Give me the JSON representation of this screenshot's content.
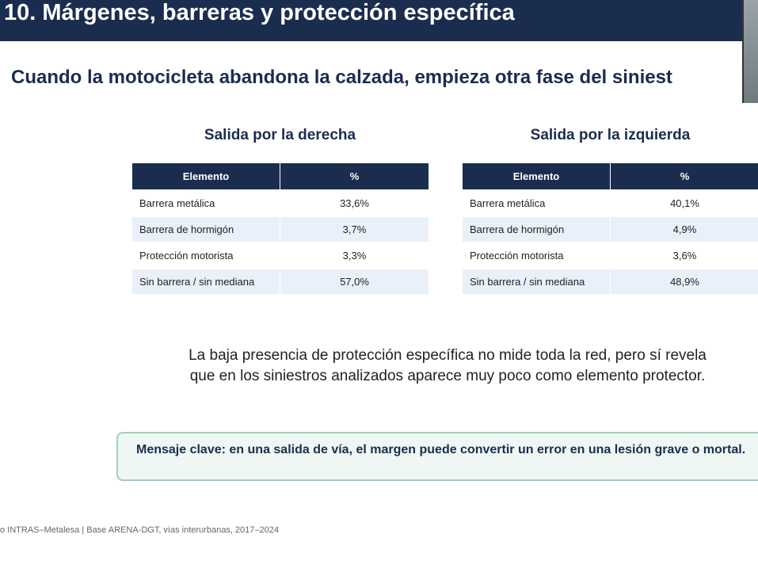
{
  "header": {
    "title": "10. Márgenes, barreras y protección específica"
  },
  "subtitle": "Cuando la motocicleta abandona la calzada, empieza otra fase del siniest",
  "tables": [
    {
      "title": "Salida por la derecha",
      "columns": [
        "Elemento",
        "%"
      ],
      "rows": [
        [
          "Barrera metálica",
          "33,6%"
        ],
        [
          "Barrera de hormigón",
          "3,7%"
        ],
        [
          "Protección motorista",
          "3,3%"
        ],
        [
          "Sin barrera / sin mediana",
          "57,0%"
        ]
      ]
    },
    {
      "title": "Salida por la izquierda",
      "columns": [
        "Elemento",
        "%"
      ],
      "rows": [
        [
          "Barrera metálica",
          "40,1%"
        ],
        [
          "Barrera de hormigón",
          "4,9%"
        ],
        [
          "Protección motorista",
          "3,6%"
        ],
        [
          "Sin barrera / sin mediana",
          "48,9%"
        ]
      ]
    }
  ],
  "note": {
    "lines": [
      "La baja presencia de protección específica no mide toda la red, pero sí revela",
      "que en los siniestros analizados aparece muy poco como elemento protector."
    ]
  },
  "key_message": "Mensaje clave: en una salida de vía, el margen puede convertir un error en una lesión grave o mortal.",
  "footer": "o INTRAS–Metalesa | Base ARENA-DGT, vías interurbanas, 2017–2024"
}
